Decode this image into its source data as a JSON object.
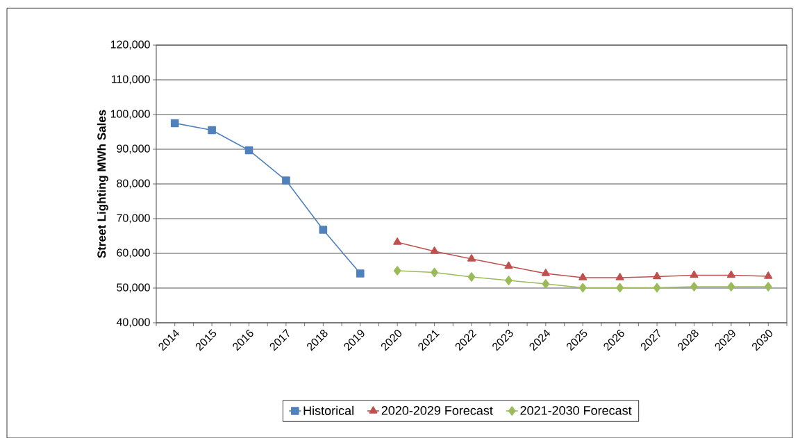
{
  "chart_data": {
    "type": "line",
    "ylabel": "Street Lighting MWh Sales",
    "categories": [
      "2014",
      "2015",
      "2016",
      "2017",
      "2018",
      "2019",
      "2020",
      "2021",
      "2022",
      "2023",
      "2024",
      "2025",
      "2026",
      "2027",
      "2028",
      "2029",
      "2030"
    ],
    "series": [
      {
        "name": "Historical",
        "color": "#4f81bd",
        "marker": "square",
        "values": [
          97500,
          95500,
          89700,
          81000,
          66800,
          54200,
          null,
          null,
          null,
          null,
          null,
          null,
          null,
          null,
          null,
          null,
          null
        ]
      },
      {
        "name": "2020-2029 Forecast",
        "color": "#c0504d",
        "marker": "triangle",
        "values": [
          null,
          null,
          null,
          null,
          null,
          null,
          63200,
          60600,
          58400,
          56300,
          54200,
          53000,
          53000,
          53300,
          53700,
          53700,
          53400
        ]
      },
      {
        "name": "2021-2030 Forecast",
        "color": "#9bbb59",
        "marker": "diamond",
        "values": [
          null,
          null,
          null,
          null,
          null,
          null,
          55000,
          54500,
          53200,
          52200,
          51200,
          50100,
          50100,
          50100,
          50400,
          50400,
          50400
        ]
      }
    ],
    "ylim": [
      40000,
      120000
    ],
    "yticks": [
      {
        "value": 40000,
        "label": "40,000"
      },
      {
        "value": 50000,
        "label": "50,000"
      },
      {
        "value": 60000,
        "label": "60,000"
      },
      {
        "value": 70000,
        "label": "70,000"
      },
      {
        "value": 80000,
        "label": "80,000"
      },
      {
        "value": 90000,
        "label": "90,000"
      },
      {
        "value": 100000,
        "label": "100,000"
      },
      {
        "value": 110000,
        "label": "110,000"
      },
      {
        "value": 120000,
        "label": "120,000"
      }
    ],
    "grid": "y",
    "legend": "bottom",
    "line_style": "solid"
  }
}
